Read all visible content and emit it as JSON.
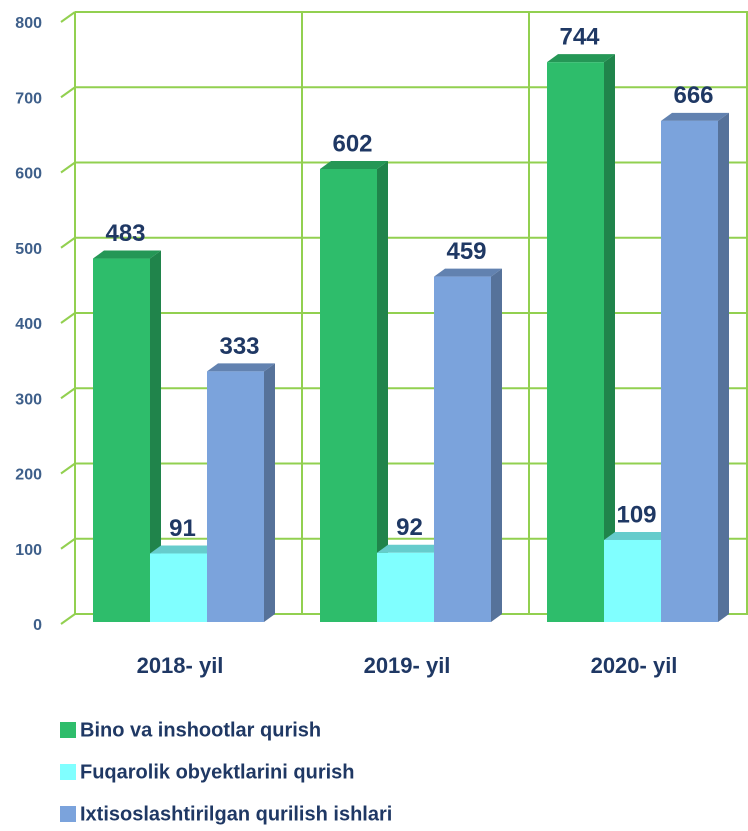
{
  "chart_data": {
    "type": "bar",
    "categories": [
      "2018- yil",
      "2019- yil",
      "2020- yil"
    ],
    "series": [
      {
        "name": "Bino va inshootlar qurish",
        "color": "#2ebd6b",
        "values": [
          483,
          602,
          744
        ]
      },
      {
        "name": "Fuqarolik obyektlarini qurish",
        "color": "#80ffff",
        "values": [
          91,
          92,
          109
        ]
      },
      {
        "name": "Ixtisoslashtirilgan qurilish ishlari",
        "color": "#7ba3dc",
        "values": [
          333,
          459,
          666
        ]
      }
    ],
    "ylim": [
      0,
      800
    ],
    "yticks": [
      0,
      100,
      200,
      300,
      400,
      500,
      600,
      700,
      800
    ],
    "grid": true
  }
}
